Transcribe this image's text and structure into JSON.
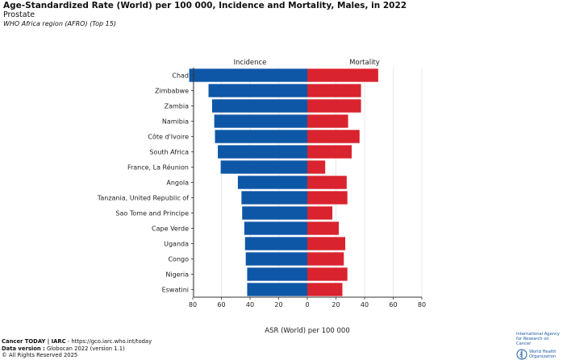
{
  "header": {
    "title": "Age-Standardized Rate (World) per 100 000, Incidence and Mortality, Males, in 2022",
    "subtitle": "Prostate",
    "region": "WHO Africa region (AFRO) (Top 15)"
  },
  "chart_data": {
    "type": "bar",
    "orientation": "horizontal-butterfly",
    "left_label": "Incidence",
    "right_label": "Mortality",
    "xlabel": "ASR (World) per 100 000",
    "xlim": [
      -80,
      80
    ],
    "ticks": [
      80,
      60,
      40,
      20,
      0,
      20,
      40,
      60,
      80
    ],
    "tick_values": [
      -80,
      -60,
      -40,
      -20,
      0,
      20,
      40,
      60,
      80
    ],
    "categories": [
      "Chad",
      "Zimbabwe",
      "Zambia",
      "Namibia",
      "Côte d'Ivoire",
      "South Africa",
      "France, La Réunion",
      "Angola",
      "Tanzania, United Republic of",
      "Sao Tome and Principe",
      "Cape Verde",
      "Uganda",
      "Congo",
      "Nigeria",
      "Eswatini"
    ],
    "series": [
      {
        "name": "Incidence",
        "color": "#0e57a6",
        "values": [
          82.5,
          69,
          66.5,
          65,
          64.5,
          62.5,
          60.5,
          48.5,
          46,
          45.5,
          44,
          43.5,
          43,
          42,
          42
        ]
      },
      {
        "name": "Mortality",
        "color": "#d9232e",
        "values": [
          49.5,
          37.5,
          37.5,
          28.5,
          36.5,
          31,
          12.5,
          27.5,
          28,
          17.5,
          22,
          26.5,
          25.5,
          28,
          24.5
        ]
      }
    ]
  },
  "footer": {
    "line1_bold": "Cancer TODAY | IARC",
    "line1_rest": " - https://gco.iarc.who.int/today",
    "line2_bold": "Data version :",
    "line2_rest": " Globocan 2022 (version 1.1)",
    "line3": "© All Rights Reserved 2025"
  },
  "logos": {
    "iarc_line1": "International Agency",
    "iarc_line2": "for Research on Cancer",
    "who_line1": "World Health",
    "who_line2": "Organization"
  }
}
